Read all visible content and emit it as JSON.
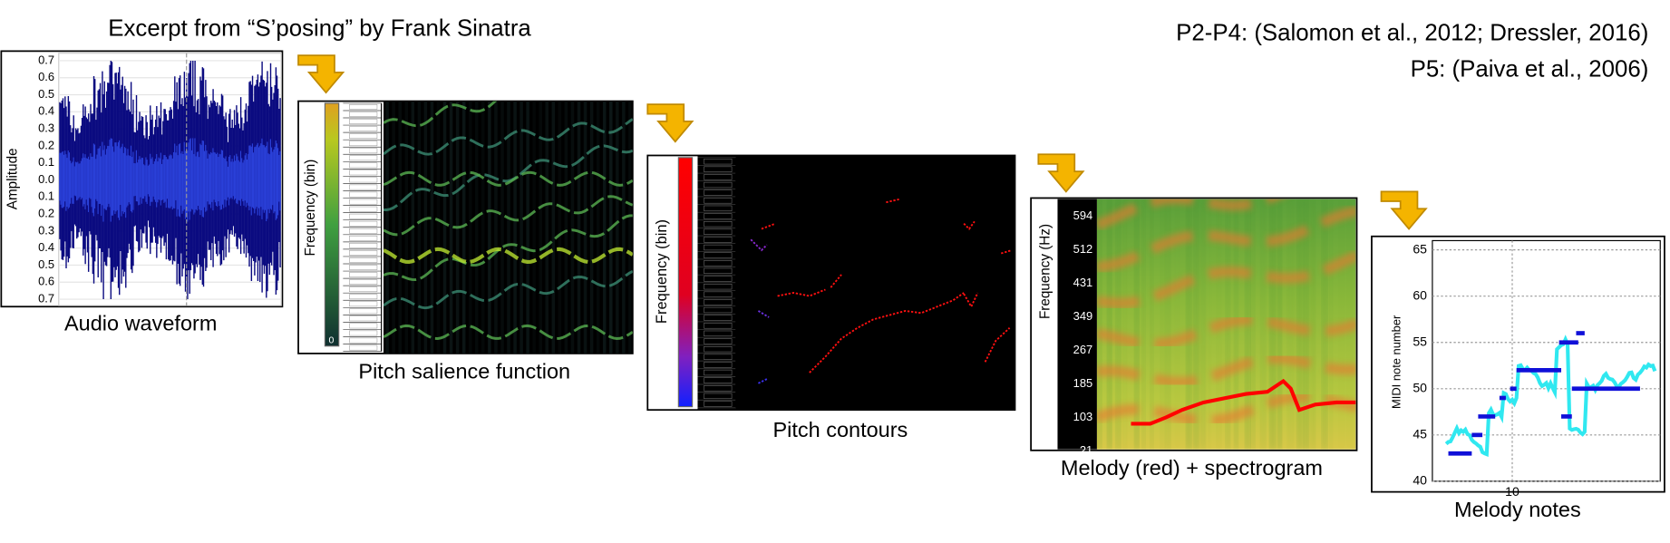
{
  "header": {
    "title": "Excerpt from “S’posing” by Frank Sinatra",
    "references": [
      "P2-P4: (Salomon et al., 2012; Dressler, 2016)",
      "P5: (Paiva et al., 2006)"
    ]
  },
  "panels": [
    {
      "caption": "Audio waveform",
      "ylabel": "Amplitude",
      "ticks": [
        "0.7",
        "0.6",
        "0.5",
        "0.4",
        "0.3",
        "0.2",
        "0.1",
        "0.0",
        "0.1",
        "0.2",
        "0.3",
        "0.4",
        "0.5",
        "0.6",
        "0.7"
      ]
    },
    {
      "caption": "Pitch salience function",
      "ylabel": "Frequency (bin)",
      "colorbar_label": "0"
    },
    {
      "caption": "Pitch contours",
      "ylabel": "Frequency (bin)"
    },
    {
      "caption": "Melody (red) + spectrogram",
      "ylabel": "Frequency (Hz)",
      "ticks": [
        "594",
        "512",
        "431",
        "349",
        "267",
        "185",
        "103",
        "21"
      ]
    },
    {
      "caption": "Melody notes",
      "ylabel": "MIDI note number",
      "yticks": [
        40,
        45,
        50,
        55,
        60,
        65
      ],
      "ylim": [
        40,
        66
      ],
      "xticks": [
        10
      ]
    }
  ]
}
